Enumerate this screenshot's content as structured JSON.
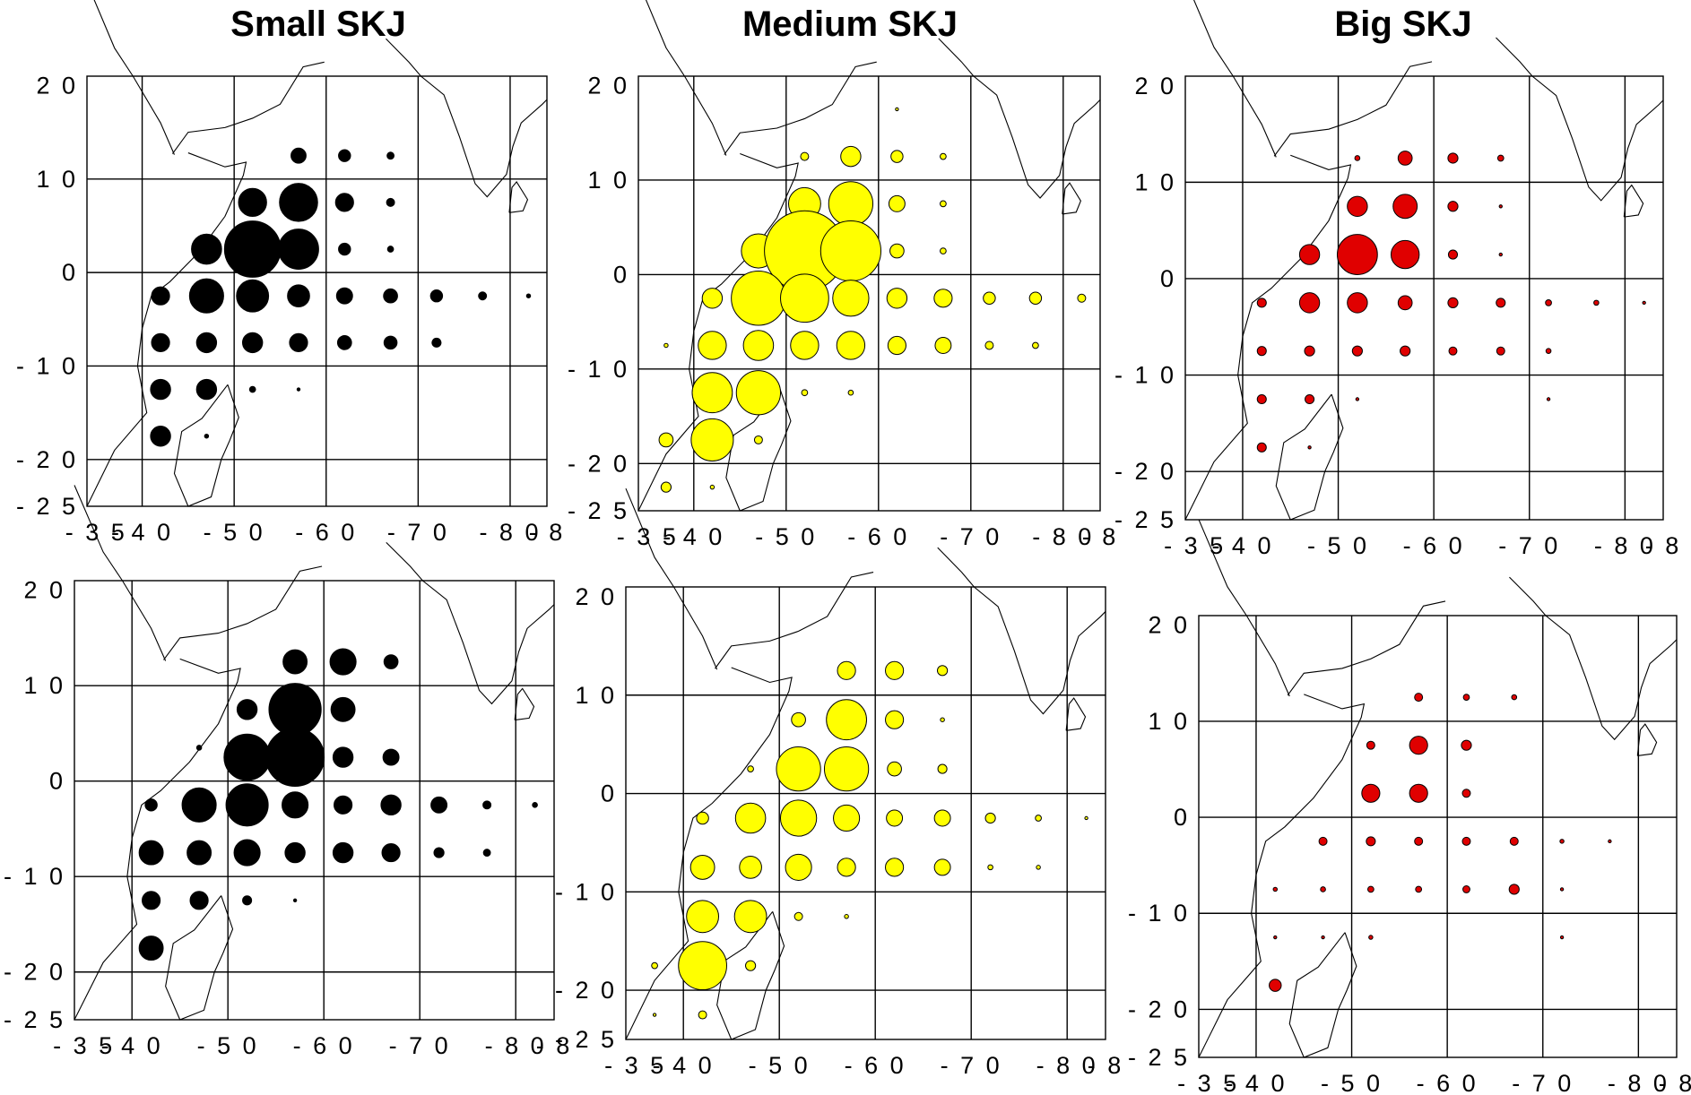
{
  "titles": [
    "Small SKJ",
    "Medium SKJ",
    "Big SKJ"
  ],
  "x_tick_labels": [
    "- 3 5",
    "- 4 0",
    "- 5 0",
    "- 6 0",
    "- 7 0",
    "- 8 0",
    "- 8"
  ],
  "y_tick_labels": [
    "2 0",
    "1 0",
    "0",
    "- 1 0",
    "- 2 0",
    "- 2 5"
  ],
  "colors": {
    "small": "#000000",
    "medium": "#ffff00",
    "big": "#e00000"
  },
  "chart_data": [
    {
      "type": "scatter",
      "name": "Small SKJ (top)",
      "color": "#000000",
      "xlim": [
        34,
        84
      ],
      "ylim": [
        -25,
        21
      ],
      "grid_x": [
        40,
        50,
        60,
        70,
        80
      ],
      "grid_y": [
        10,
        0,
        -10,
        -20
      ],
      "points": [
        [
          57,
          12.5,
          1.5
        ],
        [
          62,
          12.5,
          1.2
        ],
        [
          67,
          12.5,
          0.7
        ],
        [
          52,
          7.5,
          2.8
        ],
        [
          57,
          7.5,
          3.8
        ],
        [
          62,
          7.5,
          1.8
        ],
        [
          67,
          7.5,
          0.8
        ],
        [
          47,
          2.5,
          3.0
        ],
        [
          52,
          2.5,
          5.6
        ],
        [
          57,
          2.5,
          4.0
        ],
        [
          62,
          2.5,
          1.2
        ],
        [
          67,
          2.5,
          0.6
        ],
        [
          42,
          -2.5,
          1.8
        ],
        [
          47,
          -2.5,
          3.4
        ],
        [
          52,
          -2.5,
          3.2
        ],
        [
          57,
          -2.5,
          2.2
        ],
        [
          62,
          -2.5,
          1.6
        ],
        [
          67,
          -2.5,
          1.4
        ],
        [
          72,
          -2.5,
          1.2
        ],
        [
          77,
          -2.5,
          0.8
        ],
        [
          82,
          -2.5,
          0.4
        ],
        [
          42,
          -7.5,
          1.8
        ],
        [
          47,
          -7.5,
          2.0
        ],
        [
          52,
          -7.5,
          2.0
        ],
        [
          57,
          -7.5,
          1.8
        ],
        [
          62,
          -7.5,
          1.4
        ],
        [
          67,
          -7.5,
          1.3
        ],
        [
          72,
          -7.5,
          0.9
        ],
        [
          42,
          -12.5,
          2.0
        ],
        [
          47,
          -12.5,
          2.0
        ],
        [
          52,
          -12.5,
          0.6
        ],
        [
          57,
          -12.5,
          0.3
        ],
        [
          42,
          -17.5,
          2.0
        ],
        [
          47,
          -17.5,
          0.4
        ]
      ]
    },
    {
      "type": "scatter",
      "name": "Medium SKJ (top)",
      "color": "#ffff00",
      "xlim": [
        34,
        84
      ],
      "ylim": [
        -25,
        21
      ],
      "grid_x": [
        40,
        50,
        60,
        70,
        80
      ],
      "grid_y": [
        10,
        0,
        -10,
        -20
      ],
      "points": [
        [
          52,
          12.5,
          0.8
        ],
        [
          57,
          12.5,
          2.0
        ],
        [
          62,
          12.5,
          1.2
        ],
        [
          67,
          12.5,
          0.6
        ],
        [
          62,
          17.5,
          0.3
        ],
        [
          52,
          7.5,
          3.2
        ],
        [
          57,
          7.5,
          4.4
        ],
        [
          62,
          7.5,
          1.6
        ],
        [
          67,
          7.5,
          0.6
        ],
        [
          47,
          2.5,
          3.4
        ],
        [
          52,
          2.5,
          8.0
        ],
        [
          57,
          2.5,
          6.0
        ],
        [
          62,
          2.5,
          1.4
        ],
        [
          67,
          2.5,
          0.6
        ],
        [
          42,
          -2.5,
          2.0
        ],
        [
          47,
          -2.5,
          5.4
        ],
        [
          52,
          -2.5,
          4.8
        ],
        [
          57,
          -2.5,
          3.6
        ],
        [
          62,
          -2.5,
          2.0
        ],
        [
          67,
          -2.5,
          1.8
        ],
        [
          72,
          -2.5,
          1.2
        ],
        [
          77,
          -2.5,
          1.2
        ],
        [
          82,
          -2.5,
          0.8
        ],
        [
          42,
          -7.5,
          2.8
        ],
        [
          47,
          -7.5,
          3.0
        ],
        [
          52,
          -7.5,
          2.8
        ],
        [
          57,
          -7.5,
          2.8
        ],
        [
          62,
          -7.5,
          1.8
        ],
        [
          67,
          -7.5,
          1.6
        ],
        [
          72,
          -7.5,
          0.8
        ],
        [
          77,
          -7.5,
          0.6
        ],
        [
          37,
          -7.5,
          0.4
        ],
        [
          42,
          -12.5,
          4.0
        ],
        [
          47,
          -12.5,
          4.4
        ],
        [
          52,
          -12.5,
          0.6
        ],
        [
          57,
          -12.5,
          0.5
        ],
        [
          37,
          -17.5,
          1.4
        ],
        [
          42,
          -17.5,
          4.2
        ],
        [
          47,
          -17.5,
          0.8
        ],
        [
          37,
          -22.5,
          1.0
        ],
        [
          42,
          -22.5,
          0.4
        ]
      ]
    },
    {
      "type": "scatter",
      "name": "Big SKJ (top)",
      "color": "#e00000",
      "xlim": [
        34,
        84
      ],
      "ylim": [
        -25,
        21
      ],
      "grid_x": [
        40,
        50,
        60,
        70,
        80
      ],
      "grid_y": [
        10,
        0,
        -10,
        -20
      ],
      "points": [
        [
          52,
          12.5,
          0.5
        ],
        [
          57,
          12.5,
          1.4
        ],
        [
          62,
          12.5,
          1.0
        ],
        [
          67,
          12.5,
          0.6
        ],
        [
          52,
          7.5,
          2.0
        ],
        [
          57,
          7.5,
          2.4
        ],
        [
          62,
          7.5,
          1.0
        ],
        [
          67,
          7.5,
          0.3
        ],
        [
          47,
          2.5,
          2.0
        ],
        [
          52,
          2.5,
          4.0
        ],
        [
          57,
          2.5,
          2.8
        ],
        [
          62,
          2.5,
          0.9
        ],
        [
          67,
          2.5,
          0.3
        ],
        [
          42,
          -2.5,
          0.9
        ],
        [
          47,
          -2.5,
          2.0
        ],
        [
          52,
          -2.5,
          2.0
        ],
        [
          57,
          -2.5,
          1.4
        ],
        [
          62,
          -2.5,
          1.0
        ],
        [
          67,
          -2.5,
          0.9
        ],
        [
          72,
          -2.5,
          0.6
        ],
        [
          77,
          -2.5,
          0.5
        ],
        [
          82,
          -2.5,
          0.3
        ],
        [
          42,
          -7.5,
          0.9
        ],
        [
          47,
          -7.5,
          1.0
        ],
        [
          52,
          -7.5,
          1.0
        ],
        [
          57,
          -7.5,
          1.0
        ],
        [
          62,
          -7.5,
          0.8
        ],
        [
          67,
          -7.5,
          0.8
        ],
        [
          72,
          -7.5,
          0.5
        ],
        [
          42,
          -12.5,
          0.9
        ],
        [
          47,
          -12.5,
          0.9
        ],
        [
          52,
          -12.5,
          0.3
        ],
        [
          72,
          -12.5,
          0.3
        ],
        [
          42,
          -17.5,
          0.9
        ],
        [
          47,
          -17.5,
          0.3
        ]
      ]
    },
    {
      "type": "scatter",
      "name": "Small SKJ (bottom)",
      "color": "#000000",
      "xlim": [
        34,
        84
      ],
      "ylim": [
        -25,
        21
      ],
      "grid_x": [
        40,
        50,
        60,
        70,
        80
      ],
      "grid_y": [
        10,
        0,
        -10,
        -20
      ],
      "points": [
        [
          57,
          12.5,
          2.4
        ],
        [
          62,
          12.5,
          2.6
        ],
        [
          67,
          12.5,
          1.4
        ],
        [
          52,
          7.5,
          2.0
        ],
        [
          57,
          7.5,
          5.2
        ],
        [
          62,
          7.5,
          2.4
        ],
        [
          52,
          2.5,
          4.6
        ],
        [
          57,
          2.5,
          5.8
        ],
        [
          62,
          2.5,
          2.0
        ],
        [
          67,
          2.5,
          1.6
        ],
        [
          47,
          3.5,
          0.5
        ],
        [
          42,
          -2.5,
          1.2
        ],
        [
          47,
          -2.5,
          3.4
        ],
        [
          52,
          -2.5,
          4.2
        ],
        [
          57,
          -2.5,
          2.6
        ],
        [
          62,
          -2.5,
          1.8
        ],
        [
          67,
          -2.5,
          2.0
        ],
        [
          72,
          -2.5,
          1.6
        ],
        [
          77,
          -2.5,
          0.8
        ],
        [
          82,
          -2.5,
          0.5
        ],
        [
          42,
          -7.5,
          2.4
        ],
        [
          47,
          -7.5,
          2.4
        ],
        [
          52,
          -7.5,
          2.6
        ],
        [
          57,
          -7.5,
          2.0
        ],
        [
          62,
          -7.5,
          2.0
        ],
        [
          67,
          -7.5,
          1.8
        ],
        [
          72,
          -7.5,
          1.0
        ],
        [
          77,
          -7.5,
          0.7
        ],
        [
          42,
          -12.5,
          1.8
        ],
        [
          47,
          -12.5,
          1.8
        ],
        [
          52,
          -12.5,
          0.9
        ],
        [
          57,
          -12.5,
          0.3
        ],
        [
          42,
          -17.5,
          2.4
        ]
      ]
    },
    {
      "type": "scatter",
      "name": "Medium SKJ (bottom)",
      "color": "#ffff00",
      "xlim": [
        34,
        84
      ],
      "ylim": [
        -25,
        21
      ],
      "grid_x": [
        40,
        50,
        60,
        70,
        80
      ],
      "grid_y": [
        10,
        0,
        -10,
        -20
      ],
      "points": [
        [
          57,
          12.5,
          1.8
        ],
        [
          62,
          12.5,
          1.8
        ],
        [
          67,
          12.5,
          1.0
        ],
        [
          52,
          7.5,
          1.4
        ],
        [
          57,
          7.5,
          4.0
        ],
        [
          62,
          7.5,
          1.8
        ],
        [
          67,
          7.5,
          0.4
        ],
        [
          47,
          2.5,
          0.6
        ],
        [
          52,
          2.5,
          4.4
        ],
        [
          57,
          2.5,
          4.4
        ],
        [
          62,
          2.5,
          1.4
        ],
        [
          67,
          2.5,
          0.9
        ],
        [
          42,
          -2.5,
          1.2
        ],
        [
          47,
          -2.5,
          3.0
        ],
        [
          52,
          -2.5,
          3.6
        ],
        [
          57,
          -2.5,
          2.6
        ],
        [
          62,
          -2.5,
          1.6
        ],
        [
          67,
          -2.5,
          1.6
        ],
        [
          72,
          -2.5,
          1.0
        ],
        [
          77,
          -2.5,
          0.6
        ],
        [
          82,
          -2.5,
          0.3
        ],
        [
          42,
          -7.5,
          2.4
        ],
        [
          47,
          -7.5,
          2.2
        ],
        [
          52,
          -7.5,
          2.6
        ],
        [
          57,
          -7.5,
          1.8
        ],
        [
          62,
          -7.5,
          1.8
        ],
        [
          67,
          -7.5,
          1.6
        ],
        [
          72,
          -7.5,
          0.5
        ],
        [
          77,
          -7.5,
          0.4
        ],
        [
          42,
          -12.5,
          3.2
        ],
        [
          47,
          -12.5,
          3.2
        ],
        [
          52,
          -12.5,
          0.8
        ],
        [
          57,
          -12.5,
          0.4
        ],
        [
          37,
          -17.5,
          0.6
        ],
        [
          42,
          -17.5,
          4.8
        ],
        [
          47,
          -17.5,
          1.0
        ],
        [
          37,
          -22.5,
          0.3
        ],
        [
          42,
          -22.5,
          0.8
        ]
      ]
    },
    {
      "type": "scatter",
      "name": "Big SKJ (bottom)",
      "color": "#e00000",
      "xlim": [
        34,
        84
      ],
      "ylim": [
        -25,
        21
      ],
      "grid_x": [
        40,
        50,
        60,
        70,
        80
      ],
      "grid_y": [
        10,
        0,
        -10,
        -20
      ],
      "points": [
        [
          57,
          12.5,
          0.8
        ],
        [
          62,
          12.5,
          0.6
        ],
        [
          67,
          12.5,
          0.5
        ],
        [
          52,
          7.5,
          0.8
        ],
        [
          57,
          7.5,
          1.8
        ],
        [
          62,
          7.5,
          1.0
        ],
        [
          52,
          2.5,
          1.8
        ],
        [
          57,
          2.5,
          1.8
        ],
        [
          62,
          2.5,
          0.8
        ],
        [
          47,
          -2.5,
          0.8
        ],
        [
          52,
          -2.5,
          0.9
        ],
        [
          57,
          -2.5,
          0.8
        ],
        [
          62,
          -2.5,
          0.8
        ],
        [
          67,
          -2.5,
          0.8
        ],
        [
          72,
          -2.5,
          0.4
        ],
        [
          77,
          -2.5,
          0.3
        ],
        [
          42,
          -7.5,
          0.4
        ],
        [
          47,
          -7.5,
          0.5
        ],
        [
          52,
          -7.5,
          0.6
        ],
        [
          57,
          -7.5,
          0.6
        ],
        [
          62,
          -7.5,
          0.7
        ],
        [
          67,
          -7.5,
          1.0
        ],
        [
          72,
          -7.5,
          0.3
        ],
        [
          42,
          -12.5,
          0.3
        ],
        [
          47,
          -12.5,
          0.3
        ],
        [
          52,
          -12.5,
          0.4
        ],
        [
          72,
          -12.5,
          0.3
        ],
        [
          42,
          -17.5,
          1.2
        ]
      ]
    }
  ]
}
